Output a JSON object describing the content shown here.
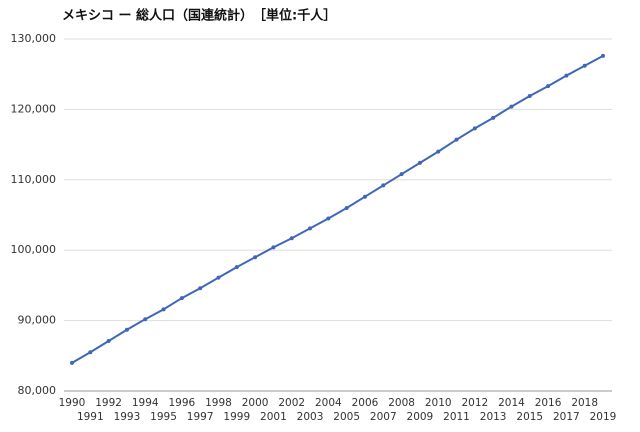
{
  "chart_data": {
    "type": "line",
    "title": "メキシコ ー 総人口（国連統計）　［単位:千人］",
    "categories": [
      "1990",
      "1991",
      "1992",
      "1993",
      "1994",
      "1995",
      "1996",
      "1997",
      "1998",
      "1999",
      "2000",
      "2001",
      "2002",
      "2003",
      "2004",
      "2005",
      "2006",
      "2007",
      "2008",
      "2009",
      "2010",
      "2011",
      "2012",
      "2013",
      "2014",
      "2015",
      "2016",
      "2017",
      "2018",
      "2019"
    ],
    "series": [
      {
        "name": "総人口",
        "color": "#4066b8",
        "values": [
          84000,
          85500,
          87100,
          88700,
          90200,
          91600,
          93200,
          94600,
          96100,
          97600,
          99000,
          100400,
          101700,
          103100,
          104500,
          106000,
          107600,
          109200,
          110800,
          112400,
          114000,
          115700,
          117300,
          118800,
          120400,
          121900,
          123300,
          124800,
          126200,
          127600
        ]
      }
    ],
    "ylim": [
      80000,
      130000
    ],
    "yticks": [
      {
        "value": 80000,
        "label": "80,000"
      },
      {
        "value": 90000,
        "label": "90,000"
      },
      {
        "value": 100000,
        "label": "100,000"
      },
      {
        "value": 110000,
        "label": "110,000"
      },
      {
        "value": 120000,
        "label": "120,000"
      },
      {
        "value": 130000,
        "label": "130,000"
      }
    ],
    "grid": true
  }
}
